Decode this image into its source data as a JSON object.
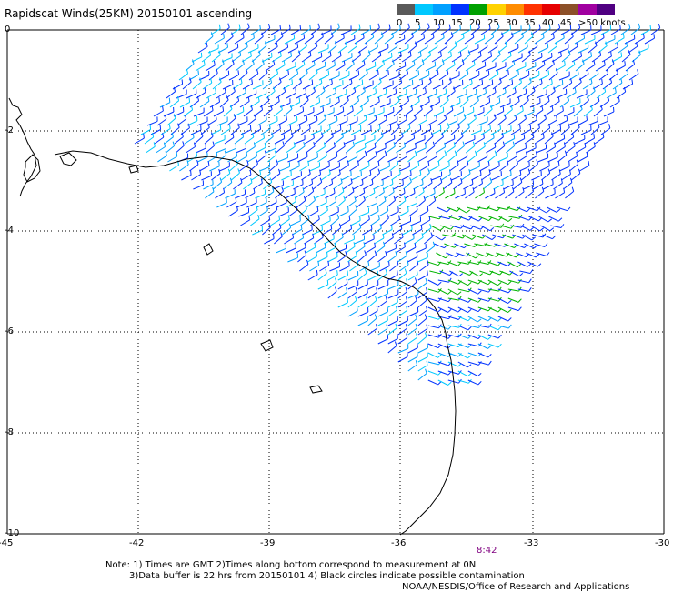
{
  "title": "Rapidscat Winds(25KM) 20150101 ascending",
  "colorbar": {
    "labels": [
      "0",
      "5",
      "10",
      "15",
      "20",
      "25",
      "30",
      "35",
      "40",
      "45",
      ">50 knots"
    ],
    "colors": [
      "#5a5a5a",
      "#00c8ff",
      "#00a0ff",
      "#0032ff",
      "#00a000",
      "#ffd200",
      "#ff8c00",
      "#ff3200",
      "#e60000",
      "#8c5028",
      "#a000a0",
      "#500082"
    ]
  },
  "axes": {
    "lat_labels": [
      "0",
      "-2",
      "-4",
      "-6",
      "-8",
      "-10"
    ],
    "lon_labels": [
      "-45",
      "-42",
      "-39",
      "-36",
      "-33",
      "-30"
    ]
  },
  "time_label": "8:42",
  "notes": [
    "Note: 1) Times are GMT 2)Times along bottom correspond to measurement at 0N",
    "3)Data buffer is 22 hrs from 20150101 4) Black circles indicate possible contamination",
    "NOAA/NESDIS/Office of Research and Applications"
  ]
}
